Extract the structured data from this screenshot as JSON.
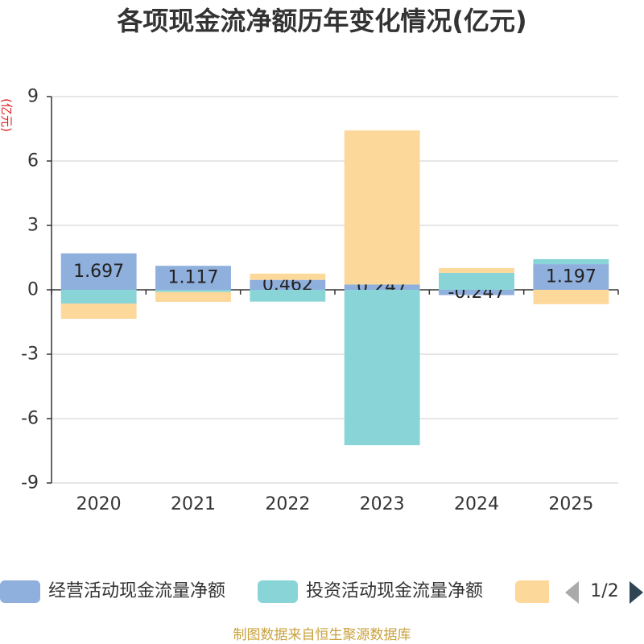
{
  "chart_data": {
    "type": "bar",
    "stacked": true,
    "title": "各项现金流净额历年变化情况(亿元)",
    "xlabel": "",
    "ylabel": "(亿元)",
    "ylabel_color": "#E02020",
    "categories": [
      "2020",
      "2021",
      "2022",
      "2023",
      "2024",
      "2025"
    ],
    "ylim": [
      -9,
      9
    ],
    "yticks": [
      9,
      6,
      3,
      0,
      -3,
      -6,
      -9
    ],
    "grid": true,
    "series": [
      {
        "name": "经营活动现金流量净额",
        "color": "#8FAFDC",
        "values": [
          1.697,
          1.117,
          0.462,
          0.247,
          -0.247,
          1.197
        ],
        "labels": [
          "1.697",
          "1.117",
          "0.462",
          "0.247",
          "-0.247",
          "1.197"
        ]
      },
      {
        "name": "投资活动现金流量净额",
        "color": "#88D4D6",
        "values": [
          -0.64,
          -0.1,
          -0.55,
          -7.24,
          0.79,
          0.23
        ]
      },
      {
        "color": "#FDD89B",
        "values": [
          -0.71,
          -0.46,
          0.29,
          7.18,
          0.22,
          -0.67
        ]
      }
    ]
  },
  "legend": {
    "page_indicator": "1/2"
  },
  "footer": "制图数据来自恒生聚源数据库"
}
